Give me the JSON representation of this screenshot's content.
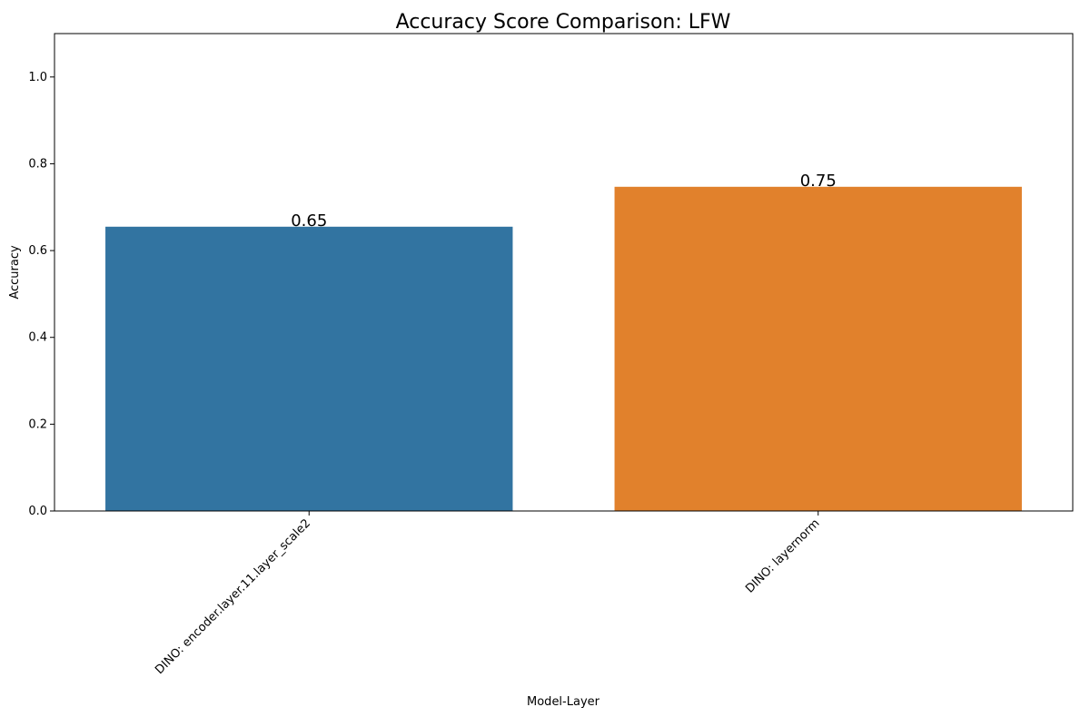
{
  "chart_data": {
    "type": "bar",
    "title": "Accuracy Score Comparison: LFW",
    "xlabel": "Model-Layer",
    "ylabel": "Accuracy",
    "ylim": [
      0,
      1.1
    ],
    "yticks": [
      0.0,
      0.2,
      0.4,
      0.6,
      0.8,
      1.0
    ],
    "ytick_labels": [
      "0.0",
      "0.2",
      "0.4",
      "0.6",
      "0.8",
      "1.0"
    ],
    "categories": [
      "DINO: encoder.layer.11.layer_scale2",
      "DINO: layernorm"
    ],
    "values": [
      0.655,
      0.747
    ],
    "data_labels": [
      "0.65",
      "0.75"
    ],
    "colors": [
      "#3274a1",
      "#e1812c"
    ],
    "grid": false,
    "legend": "none"
  }
}
